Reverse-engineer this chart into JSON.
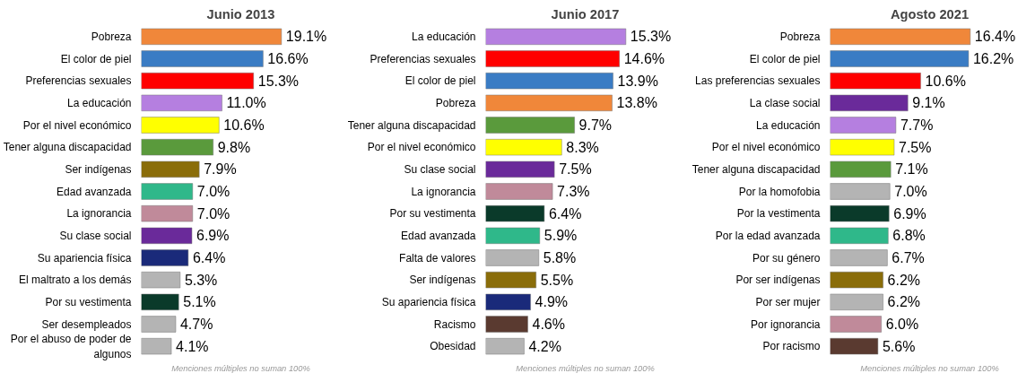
{
  "chart_data": [
    {
      "type": "bar",
      "orientation": "horizontal",
      "title": "Junio 2013",
      "categories": [
        "Pobreza",
        "El color de piel",
        "Preferencias sexuales",
        "La educación",
        "Por el nivel económico",
        "Tener alguna discapacidad",
        "Ser indígenas",
        "Edad avanzada",
        "La ignorancia",
        "Su clase social",
        "Su apariencia física",
        "El maltrato a los demás",
        "Por su vestimenta",
        "Ser desempleados",
        "Por el abuso de poder de algunos"
      ],
      "values": [
        19.1,
        16.6,
        15.3,
        11.0,
        10.6,
        9.8,
        7.9,
        7.0,
        7.0,
        6.9,
        6.4,
        5.3,
        5.1,
        4.7,
        4.1
      ],
      "value_labels": [
        "19.1%",
        "16.6%",
        "15.3%",
        "11.0%",
        "10.6%",
        "9.8%",
        "7.9%",
        "7.0%",
        "7.0%",
        "6.9%",
        "6.4%",
        "5.3%",
        "5.1%",
        "4.7%",
        "4.1%"
      ],
      "colors": [
        "#f0873a",
        "#3a7cc4",
        "#ff0000",
        "#b57fe0",
        "#ffff00",
        "#5a9a3c",
        "#8a6d0a",
        "#2fb88a",
        "#c08a9a",
        "#6a2a9a",
        "#1a2a7a",
        "#b4b4b4",
        "#0a3a2a",
        "#b4b4b4",
        "#b4b4b4"
      ],
      "annotations": [
        "Menciones múltiples no suman 100%"
      ],
      "grid": false
    },
    {
      "type": "bar",
      "orientation": "horizontal",
      "title": "Junio 2017",
      "categories": [
        "La educación",
        "Preferencias sexuales",
        "El color de piel",
        "Pobreza",
        "Tener alguna discapacidad",
        "Por el nivel económico",
        "Su clase social",
        "La ignorancia",
        "Por su vestimenta",
        "Edad avanzada",
        "Falta de valores",
        "Ser indígenas",
        "Su apariencia física",
        "Racismo",
        "Obesidad"
      ],
      "values": [
        15.3,
        14.6,
        13.9,
        13.8,
        9.7,
        8.3,
        7.5,
        7.3,
        6.4,
        5.9,
        5.8,
        5.5,
        4.9,
        4.6,
        4.2
      ],
      "value_labels": [
        "15.3%",
        "14.6%",
        "13.9%",
        "13.8%",
        "9.7%",
        "8.3%",
        "7.5%",
        "7.3%",
        "6.4%",
        "5.9%",
        "5.8%",
        "5.5%",
        "4.9%",
        "4.6%",
        "4.2%"
      ],
      "colors": [
        "#b57fe0",
        "#ff0000",
        "#3a7cc4",
        "#f0873a",
        "#5a9a3c",
        "#ffff00",
        "#6a2a9a",
        "#c08a9a",
        "#0a3a2a",
        "#2fb88a",
        "#b4b4b4",
        "#8a6d0a",
        "#1a2a7a",
        "#5a3a30",
        "#b4b4b4"
      ],
      "annotations": [
        "Menciones múltiples no suman 100%"
      ],
      "grid": false
    },
    {
      "type": "bar",
      "orientation": "horizontal",
      "title": "Agosto 2021",
      "categories": [
        "Pobreza",
        "El color de piel",
        "Las preferencias sexuales",
        "La clase social",
        "La educación",
        "Por el nivel económico",
        "Tener alguna discapacidad",
        "Por la homofobia",
        "Por la vestimenta",
        "Por la edad avanzada",
        "Por su género",
        "Por ser indígenas",
        "Por ser mujer",
        "Por ignorancia",
        "Por racismo"
      ],
      "values": [
        16.4,
        16.2,
        10.6,
        9.1,
        7.7,
        7.5,
        7.1,
        7.0,
        6.9,
        6.8,
        6.7,
        6.2,
        6.2,
        6.0,
        5.6
      ],
      "value_labels": [
        "16.4%",
        "16.2%",
        "10.6%",
        "9.1%",
        "7.7%",
        "7.5%",
        "7.1%",
        "7.0%",
        "6.9%",
        "6.8%",
        "6.7%",
        "6.2%",
        "6.2%",
        "6.0%",
        "5.6%"
      ],
      "colors": [
        "#f0873a",
        "#3a7cc4",
        "#ff0000",
        "#6a2a9a",
        "#b57fe0",
        "#ffff00",
        "#5a9a3c",
        "#b4b4b4",
        "#0a3a2a",
        "#2fb88a",
        "#b4b4b4",
        "#8a6d0a",
        "#b4b4b4",
        "#c08a9a",
        "#5a3a30"
      ],
      "annotations": [
        "Menciones múltiples no suman 100%"
      ],
      "grid": false
    }
  ]
}
